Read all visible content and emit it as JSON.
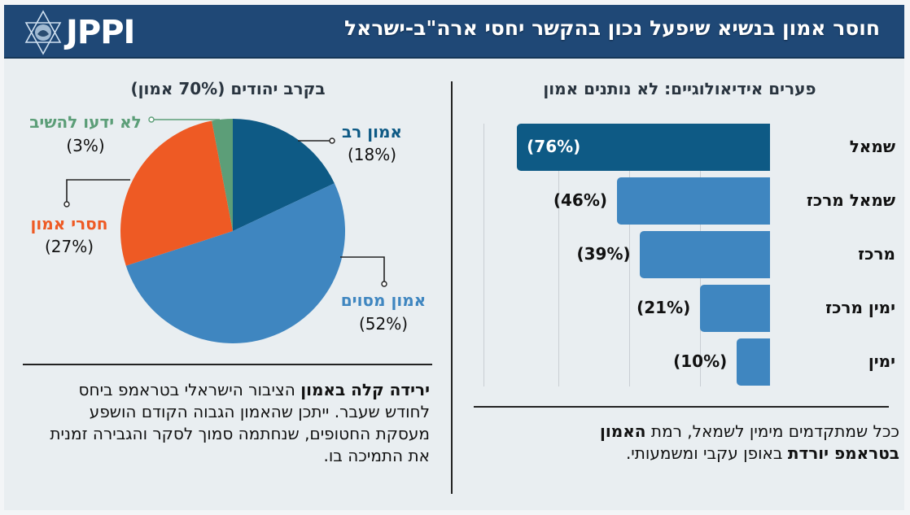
{
  "header": {
    "logo_text": "JPPI",
    "title": "חוסר אמון בנשיא שיפעל נכון בהקשר יחסי ארה\"ב-ישראל"
  },
  "colors": {
    "header_bg": "#1f4876",
    "strong_trust": "#0e5a85",
    "some_trust": "#3f86c0",
    "no_trust": "#ee5a24",
    "dont_know": "#5c9e78",
    "bar_highlight": "#0e5a85",
    "bar_default": "#3f86c0"
  },
  "left": {
    "note_bold": "ירידה קלה באמון",
    "note_rest_1": " הציבור הישראלי בטראמפ ביחס לחודש שעבר. ייתכן שהאמון הגבוה הקודם הושפע מעסקת החטופים, שנחתמה סמוך לסקר והגבירה זמנית את התמיכה בו."
  },
  "right": {
    "note_1": "ככל שמתקדמים מימין לשמאל, רמת ",
    "note_bold": "האמון בטראמפ יורדת",
    "note_2": " באופן עקבי ומשמעותי."
  },
  "chart_data": [
    {
      "type": "pie",
      "title": "בקרב יהודים (70% אמון)",
      "slices": [
        {
          "label": "אמון רב",
          "value": 18,
          "value_label": "(18%)",
          "color": "#0e5a85"
        },
        {
          "label": "אמון מסוים",
          "value": 52,
          "value_label": "(52%)",
          "color": "#3f86c0"
        },
        {
          "label": "חסרי אמון",
          "value": 27,
          "value_label": "(27%)",
          "color": "#ee5a24"
        },
        {
          "label": "לא ידעו להשיב",
          "value": 3,
          "value_label": "(3%)",
          "color": "#5c9e78"
        }
      ],
      "start": "top",
      "direction": "clockwise"
    },
    {
      "type": "bar",
      "orientation": "horizontal",
      "title": "פערים אידיאולוגיים: לא נותנים אמון",
      "categories": [
        "שמאל",
        "שמאל מרכז",
        "מרכז",
        "ימין מרכז",
        "ימין"
      ],
      "values": [
        76,
        46,
        39,
        21,
        10
      ],
      "value_labels": [
        "(76%)",
        "(46%)",
        "(39%)",
        "(21%)",
        "(10%)"
      ],
      "unit": "%",
      "grid": true,
      "highlight_index": 0
    }
  ]
}
